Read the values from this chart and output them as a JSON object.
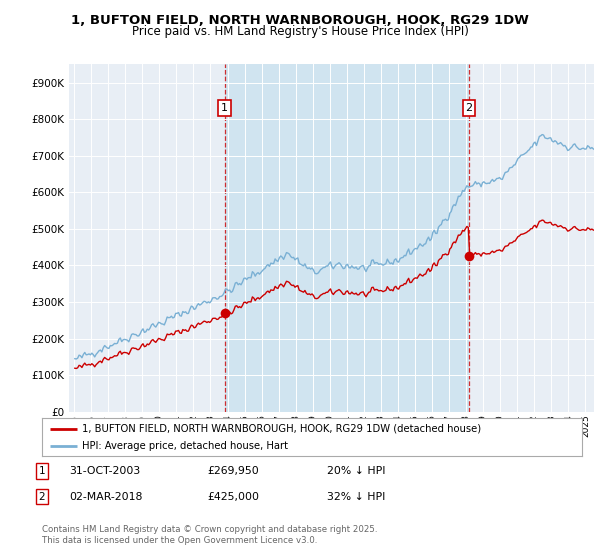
{
  "title_line1": "1, BUFTON FIELD, NORTH WARNBOROUGH, HOOK, RG29 1DW",
  "title_line2": "Price paid vs. HM Land Registry's House Price Index (HPI)",
  "background_color": "#ffffff",
  "plot_bg_color": "#e8eef5",
  "grid_color": "#ffffff",
  "shade_color": "#d0e4f0",
  "sale1_date_num": 2003.833,
  "sale1_price": 269950,
  "sale1_label": "1",
  "sale2_date_num": 2018.167,
  "sale2_price": 425000,
  "sale2_label": "2",
  "legend_entry1": "1, BUFTON FIELD, NORTH WARNBOROUGH, HOOK, RG29 1DW (detached house)",
  "legend_entry2": "HPI: Average price, detached house, Hart",
  "footer_line1": "Contains HM Land Registry data © Crown copyright and database right 2025.",
  "footer_line2": "This data is licensed under the Open Government Licence v3.0.",
  "hpi_color": "#7ab0d4",
  "price_color": "#cc0000",
  "sale_marker_color": "#cc0000",
  "ylim_max": 950000,
  "xlim_min": 1994.7,
  "xlim_max": 2025.5
}
